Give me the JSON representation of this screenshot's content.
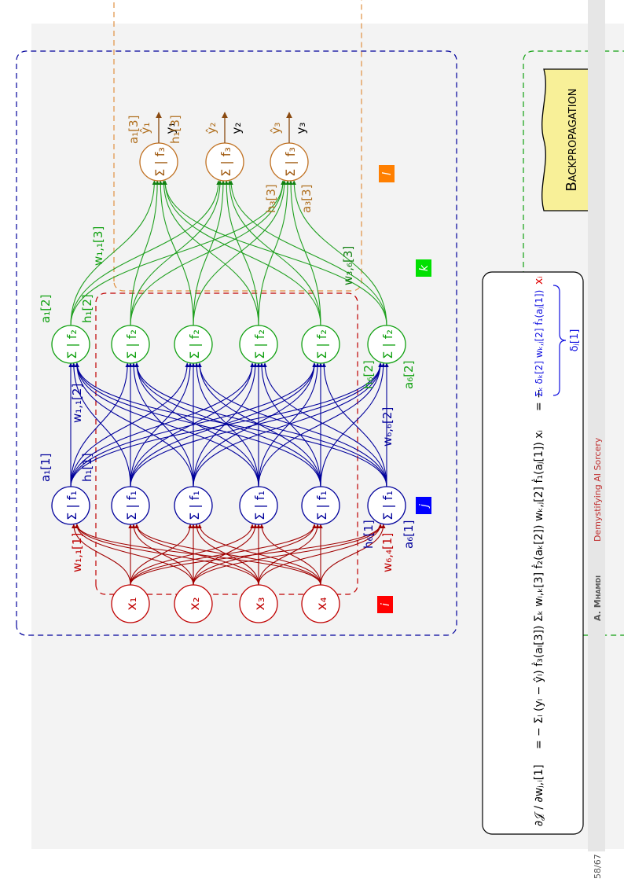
{
  "colors": {
    "input": "#c00000",
    "hidden1": "#00009b",
    "hidden2": "#10a010",
    "output": "#c07020",
    "output_arrow": "#8a4a10",
    "idx_i": "#ff0000",
    "idx_j": "#0000ff",
    "idx_k": "#00e000",
    "idx_l": "#ff7f00",
    "banner": "#f8f098",
    "formula_blue": "#1010e0",
    "formula_red": "#e00000",
    "footer_bg": "#e6e6e6",
    "footer_red": "#c03030"
  },
  "title": "Backpropagation",
  "index_labels": {
    "i": "i",
    "j": "j",
    "k": "k",
    "l": "l"
  },
  "inputs": [
    "x₁",
    "x₂",
    "x₃",
    "x₄"
  ],
  "layer1": {
    "node_label": "Σ | f₁",
    "count": 6,
    "a_first": "a₁[1]",
    "h_first": "h₁[1]",
    "a_last": "a₆[1]",
    "h_last": "h₆[1]"
  },
  "layer2": {
    "node_label": "Σ | f₂",
    "count": 6,
    "a_first": "a₁[2]",
    "h_first": "h₁[2]",
    "a_last": "a₆[2]",
    "h_last": "h₆[2]"
  },
  "layer3": {
    "node_label": "Σ | f₃",
    "count": 3,
    "a_first": "a₁[3]",
    "h_first": "h₁[3]",
    "a_last": "a₃[3]",
    "h_last": "h₃[3]"
  },
  "outputs": {
    "yhat": [
      "ŷ₁",
      "ŷ₂",
      "ŷ₃"
    ],
    "y": [
      "y₁",
      "y₂",
      "y₃"
    ]
  },
  "weights": {
    "w1_first": "w₁,₁[1]",
    "w1_last": "w₆,₄[1]",
    "w2_first": "w₁,₁[2]",
    "w2_last": "w₆,₆[2]",
    "w3_first": "w₁,₁[3]",
    "w3_last": "w₃,₆[3]"
  },
  "formula": {
    "lhs": "∂𝒥 / ∂wⱼ,ᵢ[1]",
    "part1": "= − Σₗ (yₗ − ŷₗ) ḟ₃(aₗ[3]) Σₖ wₗ,ₖ[3] ḟ₂(aₖ[2]) wₖ,ⱼ[2] ḟ₁(aⱼ[1]) xᵢ",
    "part2": "= −",
    "part3": "Σₖ δₖ[2] wₖ,ⱼ[2] ḟ₁(aⱼ[1])",
    "part4": "xᵢ",
    "brace_label": "δⱼ[1]"
  },
  "footer": {
    "page": "58/67",
    "author": "A. Mhamdi",
    "talk": "Demystifying AI Sorcery"
  }
}
